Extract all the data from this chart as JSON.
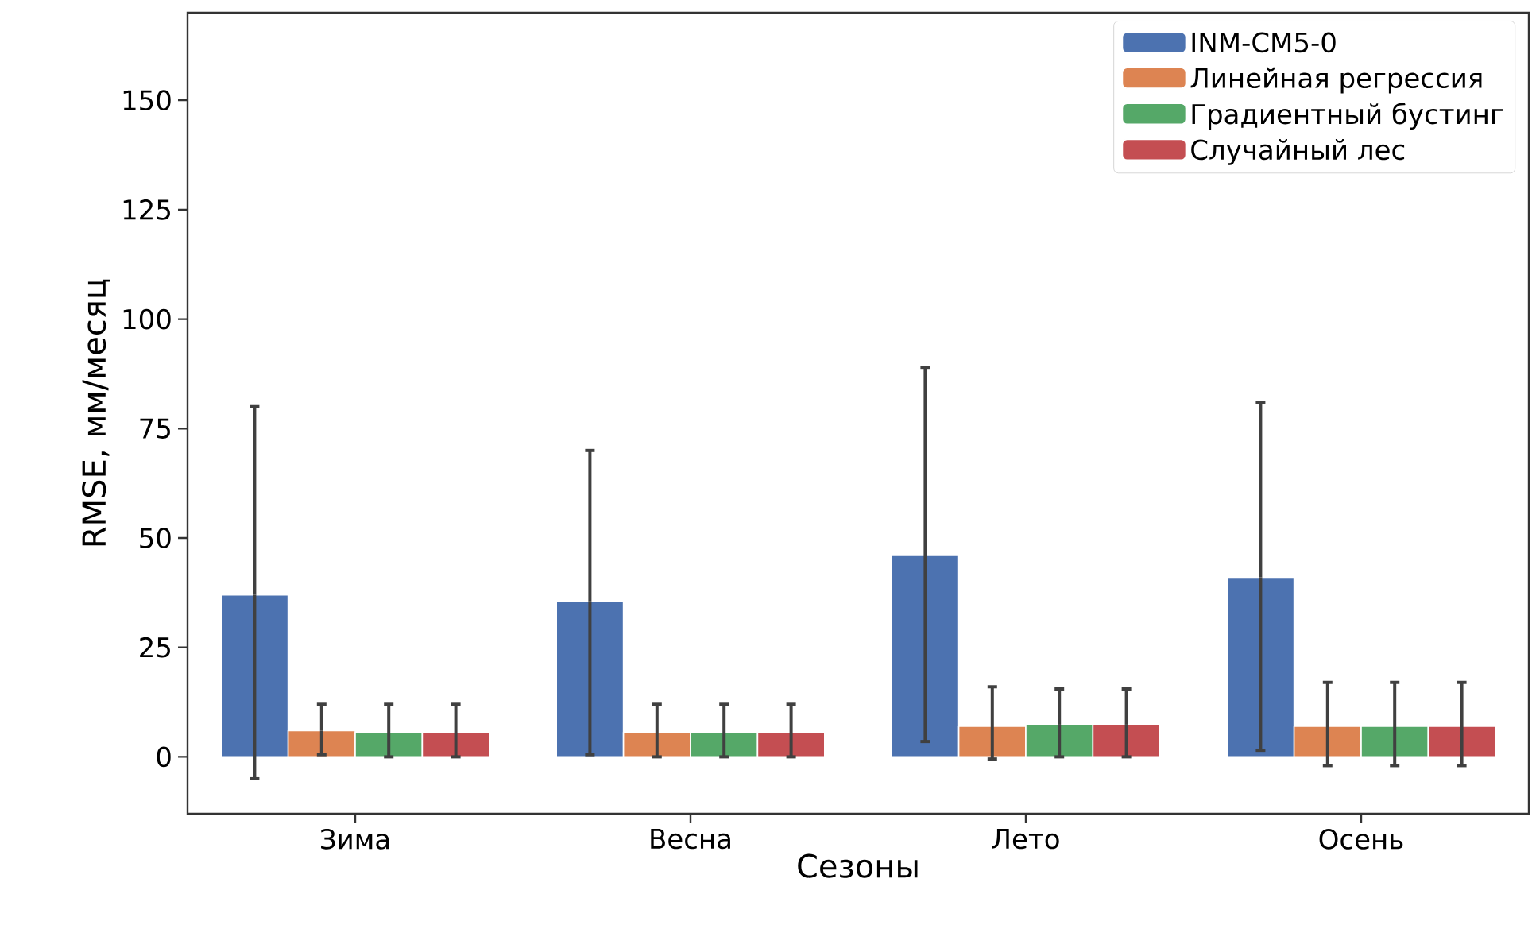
{
  "chart_data": {
    "type": "bar",
    "xlabel": "Сезоны",
    "ylabel": "RMSE, мм/месяц",
    "categories": [
      "Зима",
      "Весна",
      "Лето",
      "Осень"
    ],
    "series": [
      {
        "name": "INM-CM5-0",
        "color": "#4c72b0",
        "values": [
          37,
          35.5,
          46,
          41
        ],
        "errors": [
          [
            -5,
            80
          ],
          [
            0.5,
            70
          ],
          [
            3.5,
            89
          ],
          [
            1.5,
            81
          ]
        ]
      },
      {
        "name": "Линейная регрессия",
        "color": "#dd8452",
        "values": [
          6,
          5.5,
          7,
          7
        ],
        "errors": [
          [
            0.5,
            12
          ],
          [
            0,
            12
          ],
          [
            -0.5,
            16
          ],
          [
            -2,
            17
          ]
        ]
      },
      {
        "name": "Градиентный бустинг",
        "color": "#55a868",
        "values": [
          5.5,
          5.5,
          7.5,
          7
        ],
        "errors": [
          [
            0,
            12
          ],
          [
            0,
            12
          ],
          [
            0,
            15.5
          ],
          [
            -2,
            17
          ]
        ]
      },
      {
        "name": "Случайный лес",
        "color": "#c44e52",
        "values": [
          5.5,
          5.5,
          7.5,
          7
        ],
        "errors": [
          [
            0,
            12
          ],
          [
            0,
            12
          ],
          [
            0,
            15.5
          ],
          [
            -2,
            17
          ]
        ]
      }
    ],
    "ylim": [
      -13,
      170
    ],
    "yticks": [
      0,
      25,
      50,
      75,
      100,
      125,
      150
    ],
    "legend": "top right",
    "grid": false
  }
}
